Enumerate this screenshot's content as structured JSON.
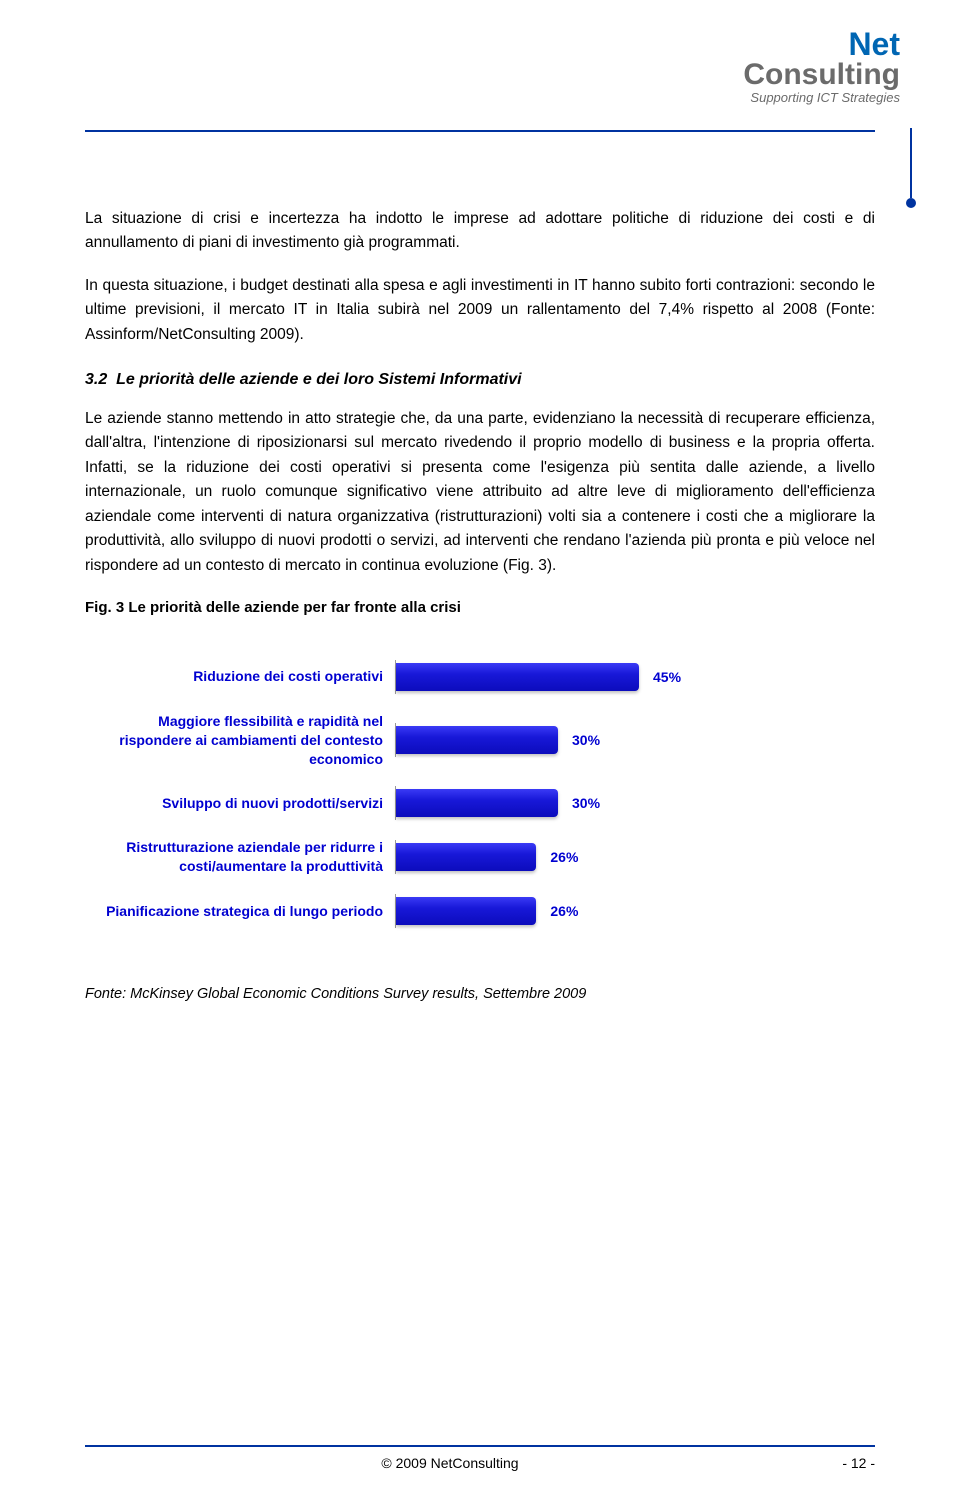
{
  "logo": {
    "line1": "Net",
    "line2": "Consulting",
    "tagline": "Supporting ICT Strategies"
  },
  "paragraphs": {
    "p1": "La situazione di crisi e incertezza ha indotto le imprese ad adottare politiche di riduzione dei costi e di annullamento di piani di investimento già programmati.",
    "p2": "In questa situazione, i budget destinati alla spesa e agli investimenti in IT hanno subito forti contrazioni: secondo le ultime previsioni, il mercato IT in Italia subirà nel 2009 un rallentamento del 7,4% rispetto al 2008 (Fonte: Assinform/NetConsulting 2009).",
    "p3": "Le aziende stanno mettendo in atto strategie che, da una parte, evidenziano la necessità di recuperare efficienza, dall'altra, l'intenzione di riposizionarsi sul mercato rivedendo il proprio modello di business e la propria offerta. Infatti, se la riduzione dei costi operativi si presenta come l'esigenza più sentita dalle aziende, a livello internazionale, un ruolo comunque significativo viene attribuito ad altre leve di miglioramento dell'efficienza aziendale come interventi di natura organizzativa (ristrutturazioni) volti sia a contenere i costi che a migliorare la produttività, allo sviluppo di nuovi prodotti o servizi, ad interventi che rendano l'azienda più pronta e più veloce nel rispondere ad un contesto di mercato in continua evoluzione (Fig. 3)."
  },
  "section": {
    "number": "3.2",
    "title": "Le priorità delle aziende e dei loro Sistemi Informativi"
  },
  "figure": {
    "caption": "Fig. 3 Le priorità delle aziende per far fronte alla crisi",
    "source": "Fonte: McKinsey Global Economic Conditions Survey results, Settembre 2009"
  },
  "chart": {
    "type": "bar-horizontal",
    "max": 50,
    "bar_color": "#1818d8",
    "label_color": "#0000d0",
    "value_color": "#0000d0",
    "items": [
      {
        "label": "Riduzione dei costi operativi",
        "value": 45,
        "display": "45%"
      },
      {
        "label": "Maggiore flessibilità e rapidità nel rispondere ai cambiamenti del contesto economico",
        "value": 30,
        "display": "30%"
      },
      {
        "label": "Sviluppo di nuovi prodotti/servizi",
        "value": 30,
        "display": "30%"
      },
      {
        "label": "Ristrutturazione aziendale per ridurre i costi/aumentare la produttività",
        "value": 26,
        "display": "26%"
      },
      {
        "label": "Pianificazione strategica di lungo periodo",
        "value": 26,
        "display": "26%"
      }
    ]
  },
  "footer": {
    "copyright": "© 2009 NetConsulting",
    "page": "- 12 -"
  }
}
